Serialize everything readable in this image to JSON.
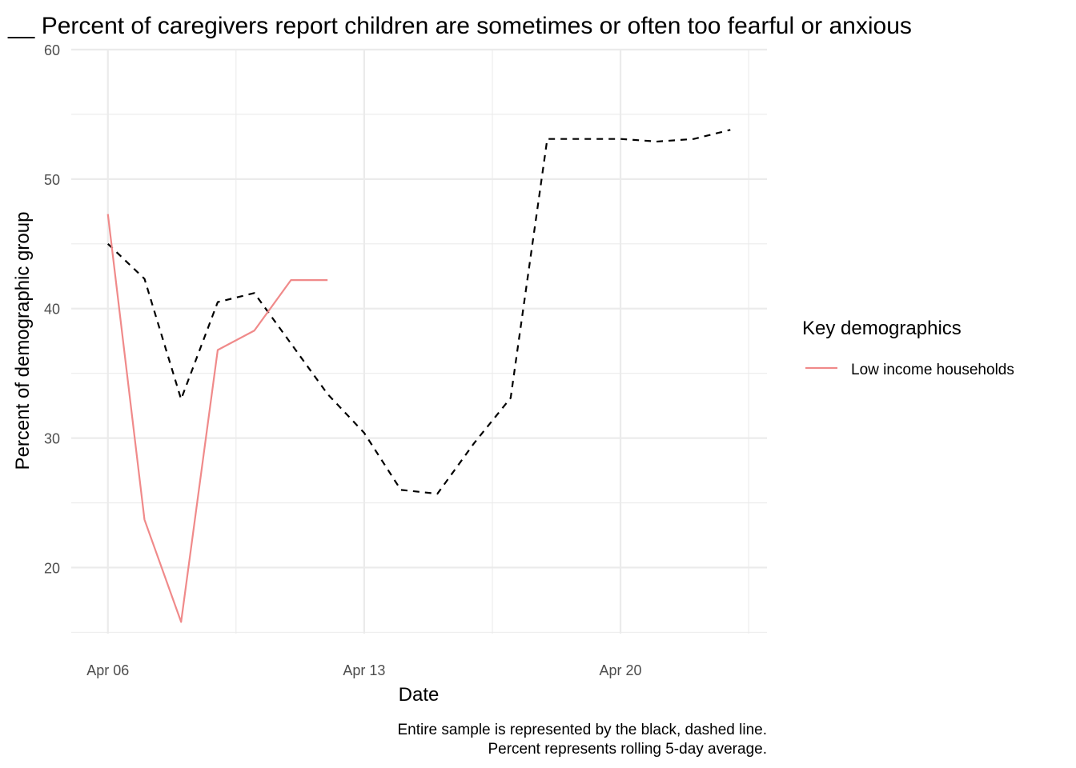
{
  "chart_data": {
    "type": "line",
    "title": "__ Percent of caregivers report children are sometimes or often too fearful or anxious",
    "xlabel": "Date",
    "ylabel": "Percent of demographic group",
    "x_ticks": [
      "Apr 06",
      "Apr 13",
      "Apr 20"
    ],
    "y_ticks": [
      20,
      30,
      40,
      50,
      60
    ],
    "ylim": [
      14.9,
      60
    ],
    "xlim": [
      "2020-04-05",
      "2020-04-24"
    ],
    "grid": true,
    "legend": {
      "title": "Key demographics",
      "position": "right",
      "entries": [
        "Low income households"
      ]
    },
    "caption": [
      "Entire sample is represented by the black, dashed line.",
      "Percent represents rolling 5-day average."
    ],
    "series": [
      {
        "name": "",
        "style": "dashed",
        "color": "#000000",
        "x": [
          "2020-04-06",
          "2020-04-07",
          "2020-04-08",
          "2020-04-09",
          "2020-04-10",
          "2020-04-11",
          "2020-04-12",
          "2020-04-13",
          "2020-04-14",
          "2020-04-15",
          "2020-04-16",
          "2020-04-17",
          "2020-04-18",
          "2020-04-19",
          "2020-04-20",
          "2020-04-21",
          "2020-04-22",
          "2020-04-23"
        ],
        "values": [
          45.0,
          42.3,
          33.0,
          40.5,
          41.2,
          37.3,
          33.4,
          30.4,
          26.0,
          25.7,
          29.6,
          33.1,
          53.1,
          53.1,
          53.1,
          52.9,
          53.1,
          53.8
        ]
      },
      {
        "name": "Low income households",
        "style": "solid",
        "color": "#F08A8A",
        "x": [
          "2020-04-06",
          "2020-04-07",
          "2020-04-08",
          "2020-04-09",
          "2020-04-10",
          "2020-04-11",
          "2020-04-12"
        ],
        "values": [
          47.3,
          23.7,
          15.8,
          36.8,
          38.3,
          42.2,
          42.2
        ]
      }
    ]
  }
}
